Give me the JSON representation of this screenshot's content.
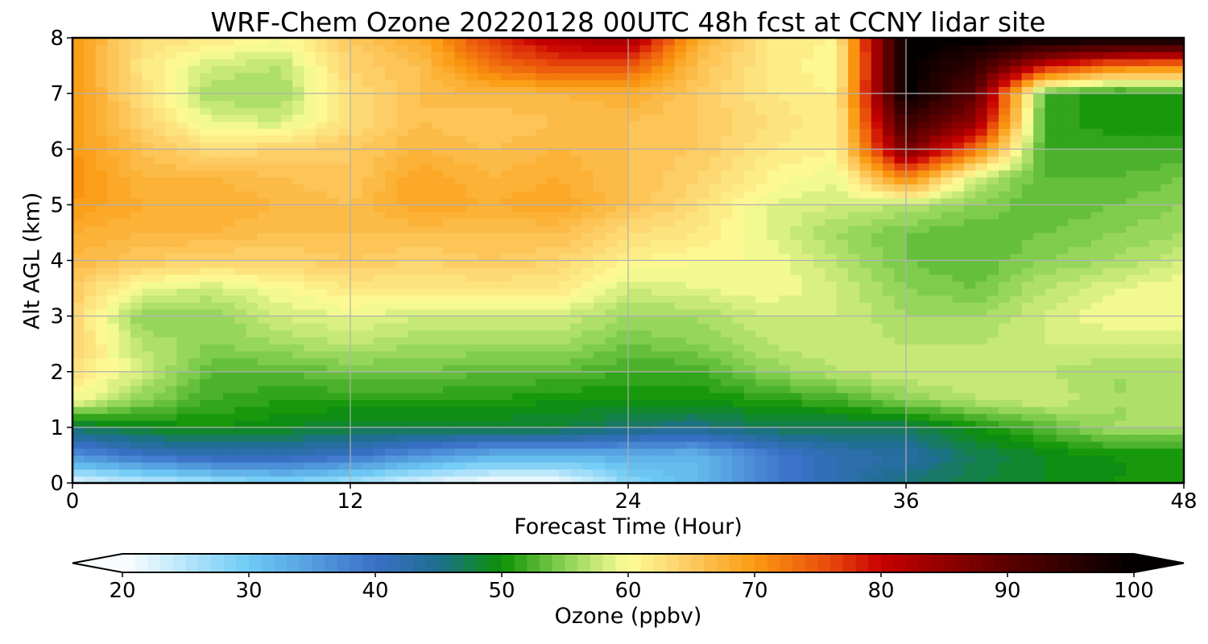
{
  "chart_data": {
    "type": "heatmap",
    "title": "WRF-Chem Ozone  20220128 00UTC 48h fcst at CCNY lidar site",
    "xlabel": "Forecast Time (Hour)",
    "ylabel": "Alt AGL (km)",
    "xlim": [
      0,
      48
    ],
    "ylim": [
      0,
      8
    ],
    "xticks": [
      0,
      12,
      24,
      36,
      48
    ],
    "yticks": [
      0,
      1,
      2,
      3,
      4,
      5,
      6,
      7,
      8
    ],
    "grid": true,
    "x": [
      0,
      3,
      6,
      9,
      12,
      15,
      18,
      21,
      24,
      27,
      30,
      33,
      36,
      39,
      42,
      45,
      48
    ],
    "y": [
      0,
      0.5,
      1,
      1.5,
      2,
      2.5,
      3,
      3.5,
      4,
      4.5,
      5,
      5.5,
      6,
      6.5,
      7,
      7.5,
      8
    ],
    "z": [
      [
        22,
        24,
        26,
        28,
        26,
        22,
        20,
        20,
        28,
        32,
        38,
        42,
        46,
        48,
        49,
        50,
        50
      ],
      [
        36,
        40,
        42,
        42,
        40,
        36,
        33,
        33,
        33,
        32,
        38,
        42,
        43,
        47,
        49,
        50,
        50
      ],
      [
        47,
        49,
        50,
        49,
        48,
        48,
        48,
        48,
        46,
        45,
        47,
        47,
        47,
        50,
        53,
        56,
        56
      ],
      [
        60,
        55,
        52,
        51,
        51,
        51,
        51,
        50,
        50,
        50,
        51,
        52,
        55,
        57,
        58,
        56,
        56
      ],
      [
        63,
        58,
        53,
        53,
        54,
        54,
        53,
        53,
        52,
        52,
        55,
        57,
        58,
        58,
        57,
        56,
        56
      ],
      [
        64,
        57,
        55,
        56,
        57,
        56,
        56,
        56,
        54,
        55,
        57,
        58,
        57,
        57,
        58,
        58,
        58
      ],
      [
        64,
        55,
        55,
        58,
        59,
        58,
        58,
        58,
        56,
        56,
        58,
        58,
        56,
        56,
        58,
        60,
        60
      ],
      [
        65,
        59,
        58,
        60,
        62,
        62,
        62,
        62,
        58,
        59,
        60,
        58,
        55,
        54,
        57,
        59,
        60
      ],
      [
        67,
        65,
        64,
        64,
        65,
        64,
        65,
        64,
        61,
        60,
        60,
        57,
        54,
        53,
        55,
        56,
        58
      ],
      [
        68,
        67,
        67,
        66,
        66,
        66,
        66,
        66,
        63,
        62,
        59,
        56,
        54,
        53,
        54,
        55,
        56
      ],
      [
        70,
        68,
        68,
        67,
        66,
        69,
        68,
        69,
        66,
        63,
        59,
        58,
        57,
        55,
        53,
        54,
        55
      ],
      [
        71,
        67,
        67,
        66,
        65,
        69,
        67,
        68,
        66,
        64,
        61,
        59,
        72,
        58,
        53,
        53,
        54
      ],
      [
        70,
        66,
        63,
        64,
        65,
        67,
        66,
        67,
        66,
        65,
        62,
        61,
        88,
        73,
        52,
        52,
        52
      ],
      [
        70,
        64,
        59,
        58,
        63,
        66,
        65,
        66,
        66,
        65,
        63,
        61,
        94,
        85,
        52,
        50,
        50
      ],
      [
        70,
        63,
        56,
        56,
        63,
        66,
        67,
        67,
        68,
        65,
        62,
        61,
        100,
        90,
        52,
        50,
        51
      ],
      [
        70,
        62,
        58,
        57,
        64,
        66,
        73,
        76,
        75,
        66,
        62,
        60,
        100,
        94,
        80,
        73,
        72
      ],
      [
        70,
        63,
        62,
        60,
        65,
        68,
        77,
        82,
        84,
        68,
        62,
        61,
        100,
        100,
        100,
        100,
        100
      ]
    ],
    "colorbar": {
      "label": "Ozone  (ppbv)",
      "min": 20,
      "max": 100,
      "ticks": [
        20,
        30,
        40,
        50,
        60,
        70,
        80,
        90,
        100
      ],
      "extend": "both",
      "stops": [
        {
          "v": 20,
          "color": "#ffffff"
        },
        {
          "v": 30,
          "color": "#6ecbf5"
        },
        {
          "v": 40,
          "color": "#3a6fc8"
        },
        {
          "v": 45,
          "color": "#1d6e8e"
        },
        {
          "v": 50,
          "color": "#0b9104"
        },
        {
          "v": 55,
          "color": "#8cd255"
        },
        {
          "v": 60,
          "color": "#fdfd96"
        },
        {
          "v": 64,
          "color": "#fdd36e"
        },
        {
          "v": 70,
          "color": "#fb9a10"
        },
        {
          "v": 76,
          "color": "#e8490c"
        },
        {
          "v": 80,
          "color": "#c80000"
        },
        {
          "v": 90,
          "color": "#5c0000"
        },
        {
          "v": 100,
          "color": "#000000"
        }
      ]
    }
  }
}
